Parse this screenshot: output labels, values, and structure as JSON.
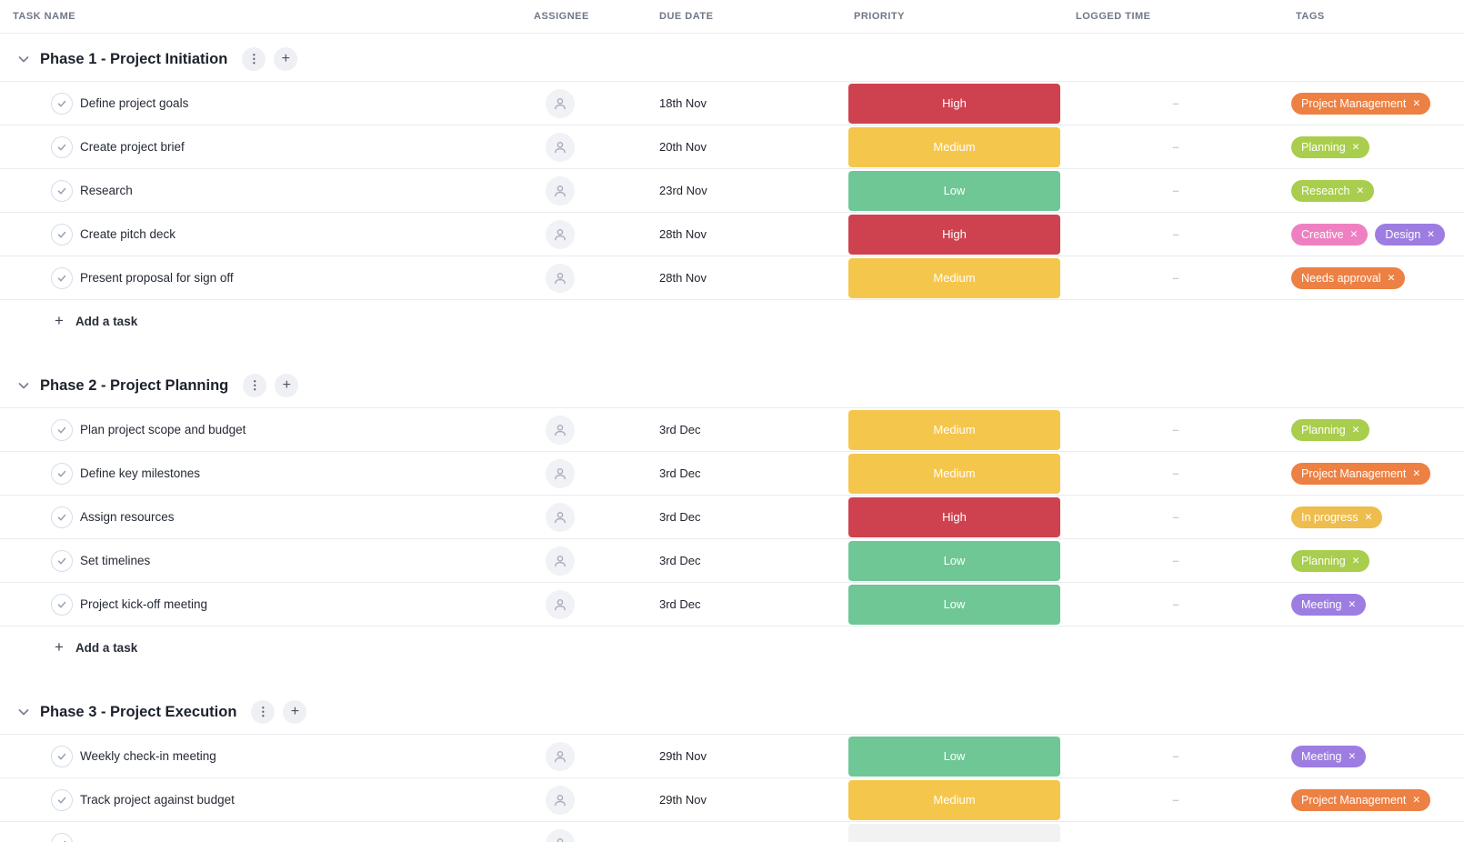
{
  "header": {
    "columns": [
      "TASK NAME",
      "ASSIGNEE",
      "DUE DATE",
      "PRIORITY",
      "LOGGED TIME",
      "TAGS"
    ]
  },
  "add_task_label": "Add a task",
  "logged_time_placeholder": "–",
  "icons": {
    "tag_remove": "✕",
    "section_menu": "⋮",
    "section_add": "+",
    "add_task_plus": "+"
  },
  "priority_colors": {
    "High": "#ce4250",
    "Medium": "#f5c64c",
    "Low": "#6ec795",
    "None": "#f2f2f3"
  },
  "tag_colors": {
    "orange": "#ed8043",
    "green": "#a9cd4d",
    "pink": "#ee80c1",
    "purple": "#9d7de1",
    "amber": "#eebd4d"
  },
  "sections": [
    {
      "title": "Phase 1 - Project Initiation",
      "show_add_task": true,
      "tasks": [
        {
          "name": "Define project goals",
          "due_date": "18th Nov",
          "priority": "High",
          "tags": [
            {
              "label": "Project Management",
              "color": "orange"
            }
          ]
        },
        {
          "name": "Create project brief",
          "due_date": "20th Nov",
          "priority": "Medium",
          "tags": [
            {
              "label": "Planning",
              "color": "green"
            }
          ]
        },
        {
          "name": "Research",
          "due_date": "23rd Nov",
          "priority": "Low",
          "tags": [
            {
              "label": "Research",
              "color": "green"
            }
          ]
        },
        {
          "name": "Create pitch deck",
          "due_date": "28th Nov",
          "priority": "High",
          "tags": [
            {
              "label": "Creative",
              "color": "pink"
            },
            {
              "label": "Design",
              "color": "purple"
            }
          ]
        },
        {
          "name": "Present proposal for sign off",
          "due_date": "28th Nov",
          "priority": "Medium",
          "tags": [
            {
              "label": "Needs approval",
              "color": "orange"
            }
          ]
        }
      ]
    },
    {
      "title": "Phase 2 - Project Planning",
      "show_add_task": true,
      "tasks": [
        {
          "name": "Plan project scope and budget",
          "due_date": "3rd Dec",
          "priority": "Medium",
          "tags": [
            {
              "label": "Planning",
              "color": "green"
            }
          ]
        },
        {
          "name": "Define key milestones",
          "due_date": "3rd Dec",
          "priority": "Medium",
          "tags": [
            {
              "label": "Project Management",
              "color": "orange"
            }
          ]
        },
        {
          "name": "Assign resources",
          "due_date": "3rd Dec",
          "priority": "High",
          "tags": [
            {
              "label": "In progress",
              "color": "amber"
            }
          ]
        },
        {
          "name": "Set timelines",
          "due_date": "3rd Dec",
          "priority": "Low",
          "tags": [
            {
              "label": "Planning",
              "color": "green"
            }
          ]
        },
        {
          "name": "Project kick-off meeting",
          "due_date": "3rd Dec",
          "priority": "Low",
          "tags": [
            {
              "label": "Meeting",
              "color": "purple"
            }
          ]
        }
      ]
    },
    {
      "title": "Phase 3 - Project Execution",
      "show_add_task": false,
      "tasks": [
        {
          "name": "Weekly check-in meeting",
          "due_date": "29th Nov",
          "priority": "Low",
          "tags": [
            {
              "label": "Meeting",
              "color": "purple"
            }
          ]
        },
        {
          "name": "Track project against budget",
          "due_date": "29th Nov",
          "priority": "Medium",
          "tags": [
            {
              "label": "Project Management",
              "color": "orange"
            }
          ]
        },
        {
          "partial": true,
          "priority": "None"
        }
      ]
    }
  ]
}
